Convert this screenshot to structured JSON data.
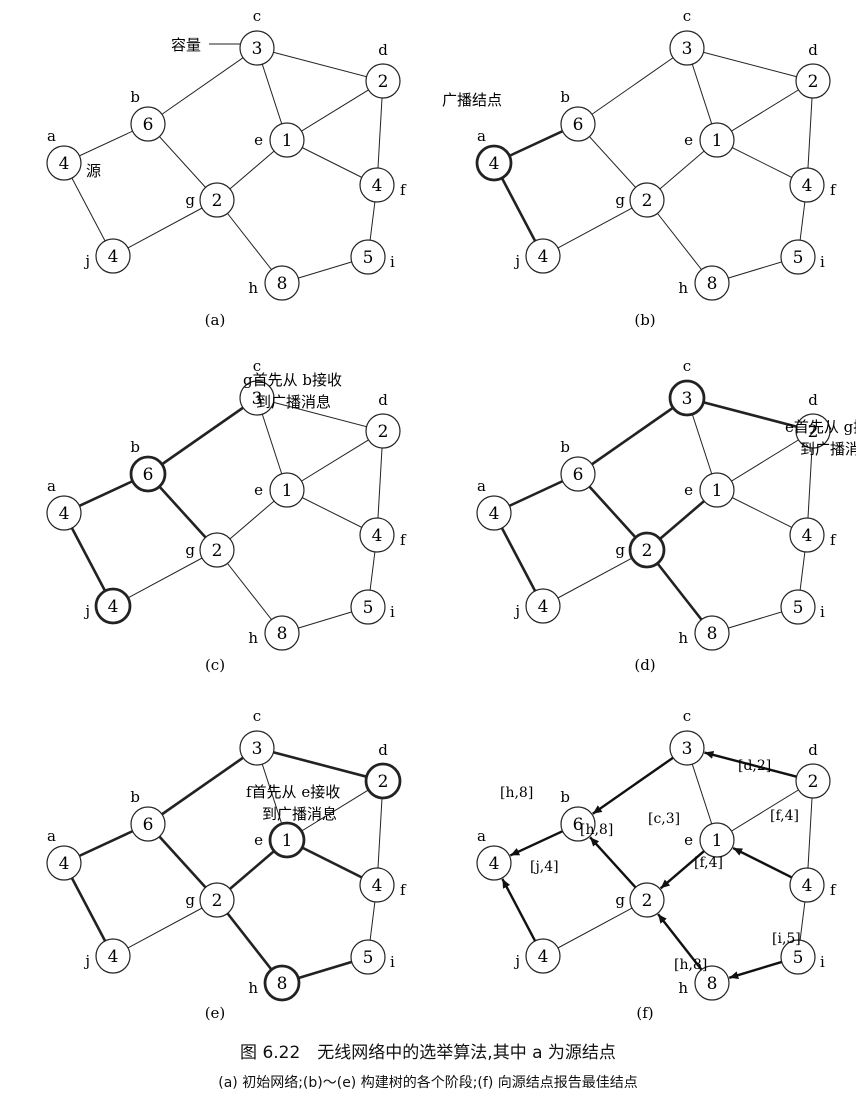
{
  "nodes": [
    {
      "id": "a",
      "cap": "4"
    },
    {
      "id": "b",
      "cap": "6"
    },
    {
      "id": "c",
      "cap": "3"
    },
    {
      "id": "d",
      "cap": "2"
    },
    {
      "id": "e",
      "cap": "1"
    },
    {
      "id": "f",
      "cap": "4"
    },
    {
      "id": "g",
      "cap": "2"
    },
    {
      "id": "h",
      "cap": "8"
    },
    {
      "id": "i",
      "cap": "5"
    },
    {
      "id": "j",
      "cap": "4"
    }
  ],
  "edges": [
    [
      "a",
      "b"
    ],
    [
      "a",
      "j"
    ],
    [
      "b",
      "c"
    ],
    [
      "b",
      "g"
    ],
    [
      "c",
      "d"
    ],
    [
      "c",
      "e"
    ],
    [
      "d",
      "e"
    ],
    [
      "d",
      "f"
    ],
    [
      "e",
      "f"
    ],
    [
      "e",
      "g"
    ],
    [
      "g",
      "j"
    ],
    [
      "g",
      "h"
    ],
    [
      "h",
      "i"
    ],
    [
      "i",
      "f"
    ]
  ],
  "panels": [
    {
      "label": "(a)",
      "bold_nodes": [],
      "bold_edges": [],
      "annotations": [
        {
          "key": "capacity",
          "text": "容量"
        },
        {
          "key": "source",
          "text": "源"
        }
      ]
    },
    {
      "label": "(b)",
      "bold_nodes": [
        "a"
      ],
      "bold_edges": [
        [
          "a",
          "b"
        ],
        [
          "a",
          "j"
        ]
      ],
      "annotations": [
        {
          "key": "broadcast",
          "text": "广播结点"
        }
      ]
    },
    {
      "label": "(c)",
      "bold_nodes": [
        "b",
        "j"
      ],
      "bold_edges": [
        [
          "a",
          "b"
        ],
        [
          "a",
          "j"
        ],
        [
          "b",
          "c"
        ],
        [
          "b",
          "g"
        ]
      ],
      "annotations": [
        {
          "key": "g1",
          "text": "g首先从 b接收"
        },
        {
          "key": "g2",
          "text": "到广播消息"
        }
      ]
    },
    {
      "label": "(d)",
      "bold_nodes": [
        "c",
        "g"
      ],
      "bold_edges": [
        [
          "a",
          "b"
        ],
        [
          "a",
          "j"
        ],
        [
          "b",
          "c"
        ],
        [
          "b",
          "g"
        ],
        [
          "c",
          "d"
        ],
        [
          "g",
          "e"
        ],
        [
          "g",
          "h"
        ]
      ],
      "annotations": [
        {
          "key": "e1",
          "text": "e首先从 g接收"
        },
        {
          "key": "e2",
          "text": "到广播消息"
        }
      ]
    },
    {
      "label": "(e)",
      "bold_nodes": [
        "d",
        "e",
        "h"
      ],
      "bold_edges": [
        [
          "a",
          "b"
        ],
        [
          "a",
          "j"
        ],
        [
          "b",
          "c"
        ],
        [
          "b",
          "g"
        ],
        [
          "c",
          "d"
        ],
        [
          "g",
          "e"
        ],
        [
          "g",
          "h"
        ],
        [
          "e",
          "f"
        ],
        [
          "h",
          "i"
        ]
      ],
      "annotations": [
        {
          "key": "f1",
          "text": "f首先从 e接收"
        },
        {
          "key": "f2",
          "text": "到广播消息"
        }
      ]
    },
    {
      "label": "(f)",
      "bold_nodes": [],
      "bold_edges": [],
      "arrows": [
        [
          "b",
          "a"
        ],
        [
          "c",
          "b"
        ],
        [
          "d",
          "c"
        ],
        [
          "j",
          "a"
        ],
        [
          "g",
          "b"
        ],
        [
          "e",
          "g"
        ],
        [
          "f",
          "e"
        ],
        [
          "h",
          "g"
        ],
        [
          "i",
          "h"
        ]
      ],
      "edge_labels": [
        "[h,8]",
        "[c,3]",
        "[d,2]",
        "[h,8]",
        "[f,4]",
        "[f,4]",
        "[j,4]",
        "[h,8]",
        "[i,5]"
      ],
      "annotations": []
    }
  ],
  "caption": {
    "title": "图 6.22　无线网络中的选举算法,其中 a 为源结点",
    "subtitle": "(a) 初始网络;(b)～(e) 构建树的各个阶段;(f) 向源结点报告最佳结点"
  }
}
